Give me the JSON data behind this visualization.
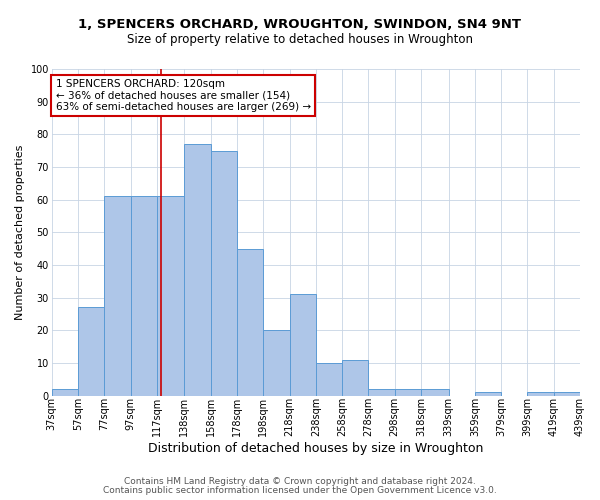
{
  "title": "1, SPENCERS ORCHARD, WROUGHTON, SWINDON, SN4 9NT",
  "subtitle": "Size of property relative to detached houses in Wroughton",
  "xlabel": "Distribution of detached houses by size in Wroughton",
  "ylabel": "Number of detached properties",
  "bar_values": [
    2,
    27,
    61,
    61,
    61,
    77,
    75,
    45,
    20,
    31,
    10,
    11,
    2,
    2,
    2,
    0,
    1,
    0,
    1,
    1
  ],
  "bin_edges": [
    37,
    57,
    77,
    97,
    117,
    138,
    158,
    178,
    198,
    218,
    238,
    258,
    278,
    298,
    318,
    339,
    359,
    379,
    399,
    419,
    439
  ],
  "tick_labels": [
    "37sqm",
    "57sqm",
    "77sqm",
    "97sqm",
    "117sqm",
    "138sqm",
    "158sqm",
    "178sqm",
    "198sqm",
    "218sqm",
    "238sqm",
    "258sqm",
    "278sqm",
    "298sqm",
    "318sqm",
    "339sqm",
    "359sqm",
    "379sqm",
    "399sqm",
    "419sqm",
    "439sqm"
  ],
  "bar_color": "#aec6e8",
  "bar_edge_color": "#5b9bd5",
  "background_color": "#ffffff",
  "grid_color": "#c8d4e4",
  "vline_x": 120,
  "vline_color": "#cc0000",
  "annotation_title": "1 SPENCERS ORCHARD: 120sqm",
  "annotation_line1": "← 36% of detached houses are smaller (154)",
  "annotation_line2": "63% of semi-detached houses are larger (269) →",
  "annotation_box_edge": "#cc0000",
  "ylim": [
    0,
    100
  ],
  "yticks": [
    0,
    10,
    20,
    30,
    40,
    50,
    60,
    70,
    80,
    90,
    100
  ],
  "footer1": "Contains HM Land Registry data © Crown copyright and database right 2024.",
  "footer2": "Contains public sector information licensed under the Open Government Licence v3.0.",
  "title_fontsize": 9.5,
  "subtitle_fontsize": 8.5,
  "xlabel_fontsize": 9,
  "ylabel_fontsize": 8,
  "tick_fontsize": 7,
  "annotation_fontsize": 7.5,
  "footer_fontsize": 6.5
}
